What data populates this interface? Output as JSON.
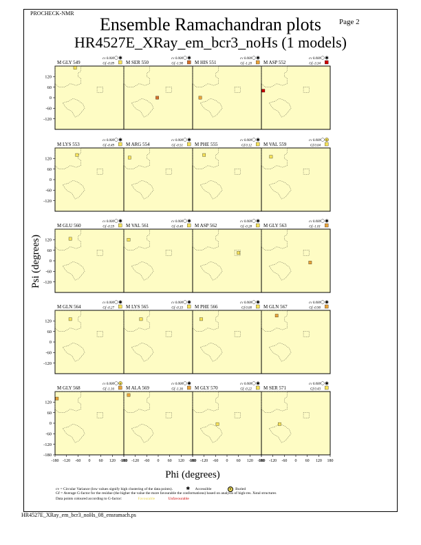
{
  "header": {
    "program": "PROCHECK-NMR",
    "page": "Page  2"
  },
  "title": {
    "line1": "Ensemble Ramachandran plots",
    "line2": "HR4527E_XRay_em_bcr3_noHs (1 models)"
  },
  "footer": {
    "filename": "HR4527E_XRay_em_bcr3_noHs_08_ensramach.ps"
  },
  "legend": {
    "cv_text": "cv = Circular Variance (low values signify high clustering of the data points).",
    "accessible": "Accessible",
    "buried": "Buried",
    "gf_text": "Gf = Average G-factor for the residue (the higher the value the more favourable the conformations) based on analysis of high-res. Xstal structures",
    "coloured_text": "Data points coloured according to G-factor:",
    "favourable": "Favourable",
    "unfavourable": "Unfavourable"
  },
  "colors": {
    "plot_bg": "#fefcc4",
    "favourable": "#f6e25a",
    "mid": "#e8a33a",
    "unfavourable": "#cc0000",
    "region_outline": "#6b6b55"
  },
  "chart_data": {
    "type": "scatter",
    "xlabel": "Phi (degrees)",
    "ylabel": "Psi (degrees)",
    "xlim": [
      -180,
      180
    ],
    "ylim": [
      -180,
      180
    ],
    "x_ticks": [
      "-180",
      "-120",
      "-60",
      "0",
      "60",
      "120",
      "180"
    ],
    "y_ticks": [
      "120",
      "60",
      "0",
      "-60",
      "-120"
    ],
    "y_ticks_bottom": [
      "120",
      "60",
      "0",
      "-60",
      "-120",
      "-180"
    ],
    "panels": [
      {
        "label": "M GLY 549",
        "cv": "cv 0.000",
        "gf": "Gf -0.09",
        "sym": "star",
        "swatch": "#f6e25a",
        "points": [
          {
            "phi": -75,
            "psi": 170
          }
        ]
      },
      {
        "label": "M SER 550",
        "cv": "cv 0.000",
        "gf": "Gf -1.90",
        "sym": "star",
        "swatch": "#d4702a",
        "points": [
          {
            "phi": -5,
            "psi": 0
          }
        ]
      },
      {
        "label": "M HIS 551",
        "cv": "cv 0.000",
        "gf": "Gf -1.20",
        "sym": "star",
        "swatch": "#e8a33a",
        "points": [
          {
            "phi": -140,
            "psi": 0
          }
        ]
      },
      {
        "label": "M ASP 552",
        "cv": "cv 0.000",
        "gf": "Gf -3.34",
        "sym": "star",
        "swatch": "#cc0000",
        "points": [
          {
            "phi": -170,
            "psi": 40
          }
        ]
      },
      {
        "label": "M LYS 553",
        "cv": "cv 0.000",
        "gf": "Gf -0.49",
        "sym": "star",
        "swatch": "#f6e25a",
        "points": [
          {
            "phi": -65,
            "psi": 140
          }
        ]
      },
      {
        "label": "M ARG 554",
        "cv": "cv 0.000",
        "gf": "Gf -0.51",
        "sym": "star",
        "swatch": "#f6e25a",
        "points": [
          {
            "phi": -150,
            "psi": 125
          }
        ]
      },
      {
        "label": "M PHE 555",
        "cv": "cv 0.000",
        "gf": "Gf 0.12",
        "sym": "star",
        "swatch": "#f6e25a",
        "points": [
          {
            "phi": -120,
            "psi": 140
          }
        ]
      },
      {
        "label": "M VAL 559",
        "cv": "cv 0.000",
        "gf": "Gf 0.04",
        "sym": "buried",
        "swatch": "#f6e25a",
        "points": [
          {
            "phi": -130,
            "psi": 130
          }
        ]
      },
      {
        "label": "M GLU 560",
        "cv": "cv 0.000",
        "gf": "Gf -0.59",
        "sym": "star",
        "swatch": "#f6e25a",
        "points": [
          {
            "phi": -100,
            "psi": 125
          }
        ]
      },
      {
        "label": "M VAL 561",
        "cv": "cv 0.000",
        "gf": "Gf -0.40",
        "sym": "star",
        "swatch": "#f6e25a",
        "points": [
          {
            "phi": -155,
            "psi": 120
          }
        ]
      },
      {
        "label": "M ASP 562",
        "cv": "cv 0.000",
        "gf": "Gf -0.28",
        "sym": "star",
        "swatch": "#f6e25a",
        "points": [
          {
            "phi": 60,
            "psi": 45
          }
        ]
      },
      {
        "label": "M GLY 563",
        "cv": "cv 0.000",
        "gf": "Gf -1.01",
        "sym": "star",
        "swatch": "#e8a33a",
        "points": [
          {
            "phi": 75,
            "psi": -10
          }
        ]
      },
      {
        "label": "M GLN 564",
        "cv": "cv 0.000",
        "gf": "Gf -0.27",
        "sym": "star",
        "swatch": "#f6e25a",
        "points": [
          {
            "phi": -100,
            "psi": 130
          }
        ]
      },
      {
        "label": "M LYS 565",
        "cv": "cv 0.000",
        "gf": "Gf -0.33",
        "sym": "star",
        "swatch": "#f6e25a",
        "points": [
          {
            "phi": -90,
            "psi": 130
          }
        ]
      },
      {
        "label": "M PHE 566",
        "cv": "cv 0.000",
        "gf": "Gf 0.00",
        "sym": "star",
        "swatch": "#f6e25a",
        "points": [
          {
            "phi": -135,
            "psi": 130
          }
        ]
      },
      {
        "label": "M GLN 567",
        "cv": "cv 0.000",
        "gf": "Gf -0.90",
        "sym": "star",
        "swatch": "#e8a33a",
        "points": [
          {
            "phi": -100,
            "psi": 150
          }
        ]
      },
      {
        "label": "M GLY 568",
        "cv": "cv 0.000",
        "gf": "Gf -1.16",
        "sym": "buried",
        "swatch": "#e8a33a",
        "points": [
          {
            "phi": -170,
            "psi": 140
          }
        ]
      },
      {
        "label": "M ALA 569",
        "cv": "cv 0.000",
        "gf": "Gf -1.36",
        "sym": "star",
        "swatch": "#e8a33a",
        "points": [
          {
            "phi": -155,
            "psi": 160
          }
        ]
      },
      {
        "label": "M GLY 570",
        "cv": "cv 0.000",
        "gf": "Gf -0.22",
        "sym": "star",
        "swatch": "#f6e25a",
        "points": [
          {
            "phi": -50,
            "psi": -5
          }
        ]
      },
      {
        "label": "M SER 571",
        "cv": "cv 0.000",
        "gf": "Gf 0.43",
        "sym": "star",
        "swatch": "#f6e25a",
        "points": [
          {
            "phi": -85,
            "psi": -5
          }
        ]
      }
    ]
  }
}
